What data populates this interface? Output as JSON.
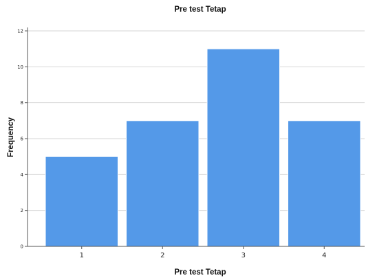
{
  "chart_data": {
    "type": "bar",
    "title": "Pre test Tetap",
    "xlabel": "Pre test Tetap",
    "ylabel": "Frequency",
    "categories": [
      "1",
      "2",
      "3",
      "4"
    ],
    "values": [
      5,
      7,
      11,
      7
    ],
    "ylim": [
      0,
      12
    ],
    "yticks": [
      "0",
      "2",
      "4",
      "6",
      "8",
      "10",
      "12"
    ],
    "grid": true,
    "legend": "none",
    "colors": {
      "bar": "#5499e8"
    }
  }
}
